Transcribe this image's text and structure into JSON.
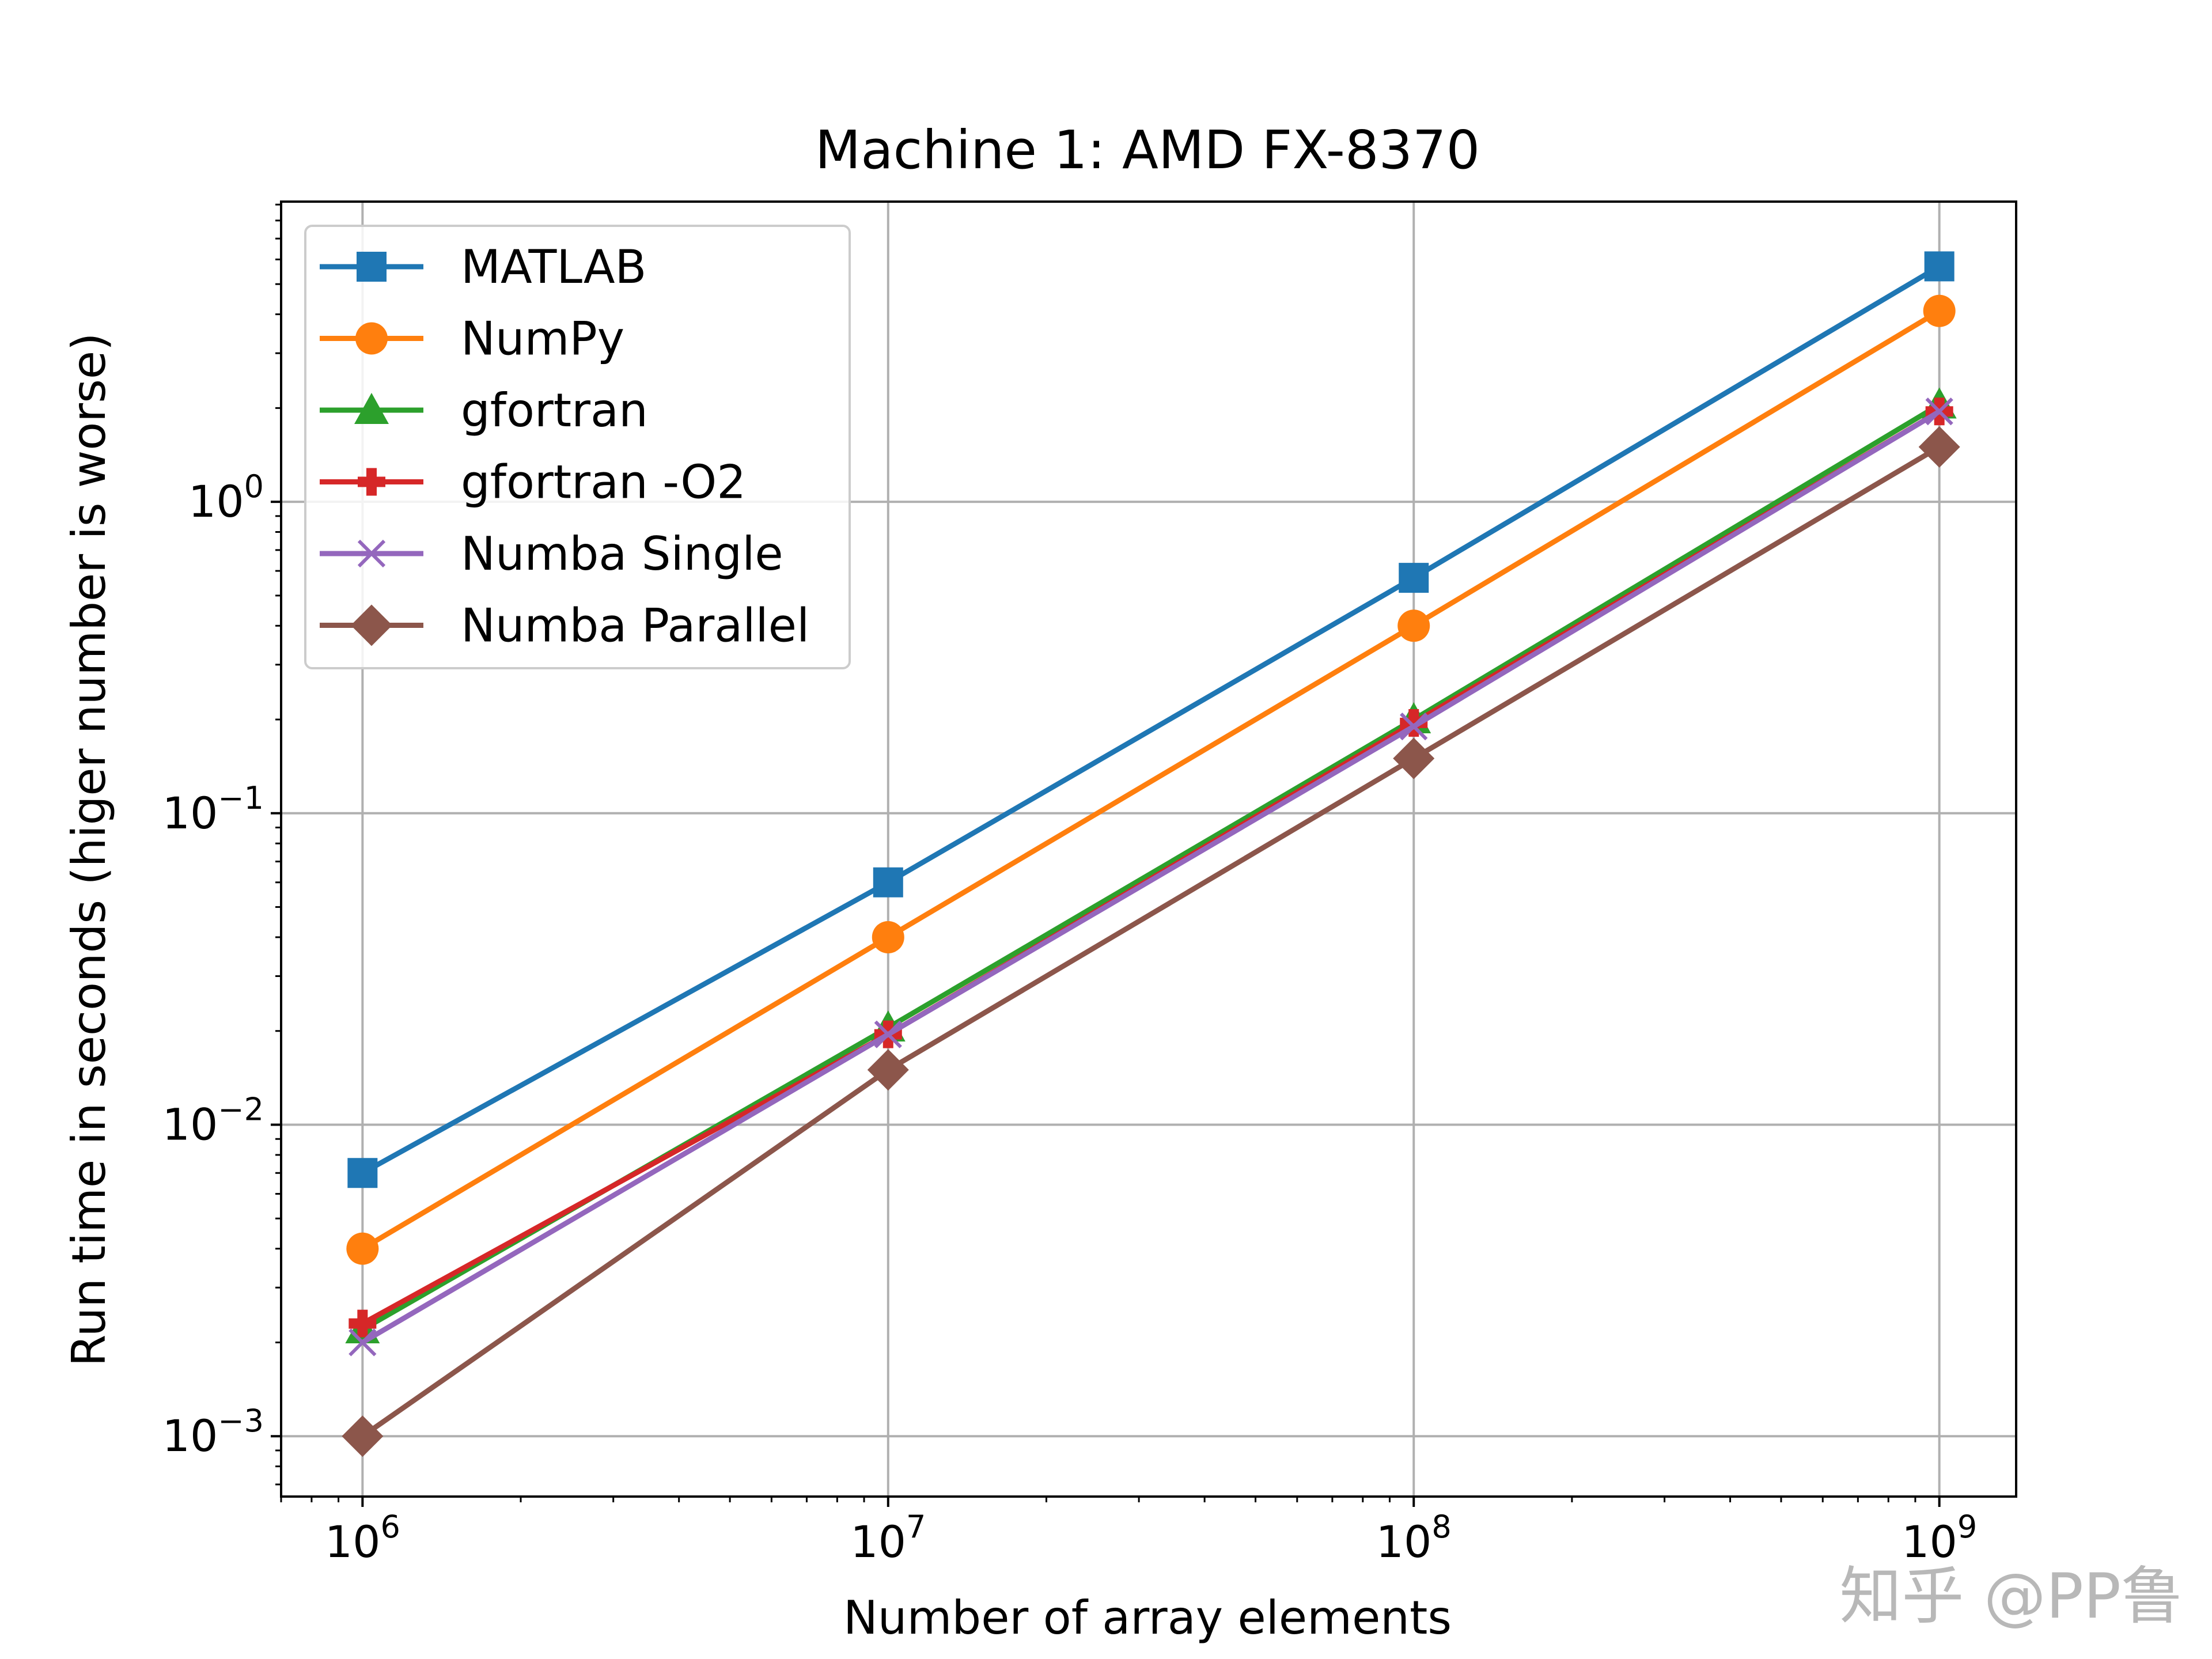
{
  "chart_data": {
    "type": "line",
    "title": "Machine 1: AMD FX-8370",
    "xlabel": "Number of array elements",
    "ylabel": "Run time in seconds (higer number is worse)",
    "xscale": "log",
    "yscale": "log",
    "xlim": [
      700000,
      1400000000
    ],
    "ylim": [
      0.00064,
      9.2
    ],
    "grid": true,
    "legend_position": "top-left",
    "x": [
      1000000,
      10000000,
      100000000,
      1000000000
    ],
    "x_ticks": [
      {
        "value": 1000000,
        "base": "10",
        "exp": "6"
      },
      {
        "value": 10000000,
        "base": "10",
        "exp": "7"
      },
      {
        "value": 100000000,
        "base": "10",
        "exp": "8"
      },
      {
        "value": 1000000000,
        "base": "10",
        "exp": "9"
      }
    ],
    "y_ticks": [
      {
        "value": 0.001,
        "base": "10",
        "exp": "−3"
      },
      {
        "value": 0.01,
        "base": "10",
        "exp": "−2"
      },
      {
        "value": 0.1,
        "base": "10",
        "exp": "−1"
      },
      {
        "value": 1,
        "base": "10",
        "exp": "0"
      }
    ],
    "series": [
      {
        "name": "MATLAB",
        "color": "#1f77b4",
        "marker": "square",
        "values": [
          0.007,
          0.06,
          0.57,
          5.7
        ]
      },
      {
        "name": "NumPy",
        "color": "#ff7f0e",
        "marker": "circle",
        "values": [
          0.004,
          0.04,
          0.4,
          4.1
        ]
      },
      {
        "name": "gfortran",
        "color": "#2ca02c",
        "marker": "triangle",
        "values": [
          0.0022,
          0.0205,
          0.2,
          2.05
        ]
      },
      {
        "name": "gfortran -O2",
        "color": "#d62728",
        "marker": "plus",
        "values": [
          0.0023,
          0.0195,
          0.195,
          1.95
        ]
      },
      {
        "name": "Numba Single",
        "color": "#9467bd",
        "marker": "x",
        "values": [
          0.002,
          0.0195,
          0.19,
          1.95
        ]
      },
      {
        "name": "Numba Parallel",
        "color": "#8c564b",
        "marker": "diamond",
        "values": [
          0.001,
          0.015,
          0.15,
          1.5
        ]
      }
    ]
  },
  "watermark": "知乎 @PP鲁"
}
